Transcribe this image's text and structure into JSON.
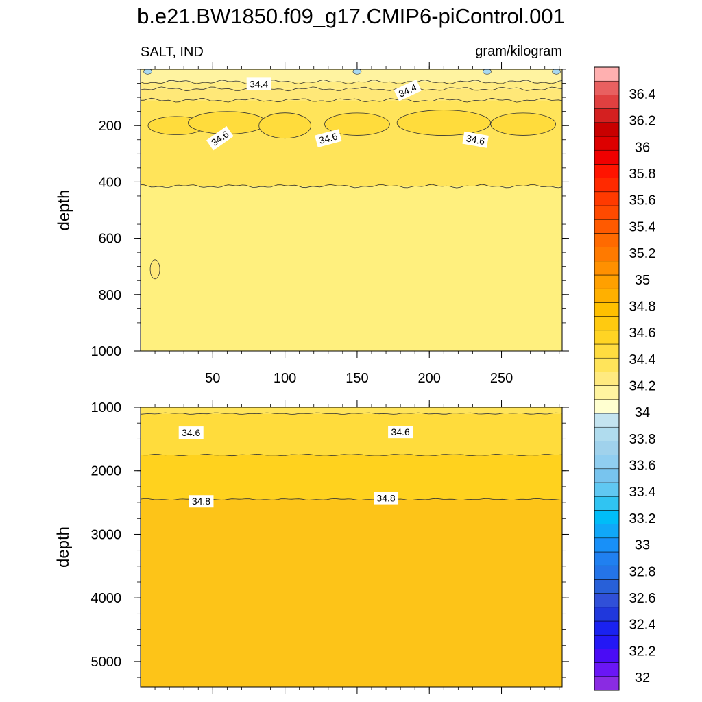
{
  "title": "b.e21.BW1850.f09_g17.CMIP6-piControl.001",
  "chart_data": [
    {
      "type": "heatmap",
      "panel": "upper",
      "left_label": "SALT, IND",
      "right_label": "gram/kilogram",
      "xlabel": "",
      "ylabel": "depth",
      "xlim": [
        0,
        292
      ],
      "ylim": [
        0,
        1000
      ],
      "y_reversed": true,
      "x_ticks": [
        50,
        100,
        150,
        200,
        250
      ],
      "x_tick_labels": [
        "50",
        "100",
        "150",
        "200",
        "250"
      ],
      "y_ticks": [
        200,
        400,
        600,
        800,
        1000
      ],
      "y_tick_labels": [
        "200",
        "400",
        "600",
        "800",
        "1000"
      ],
      "bands": [
        {
          "from": 0,
          "to": 45,
          "level": 34.3,
          "color": "#fff3a0"
        },
        {
          "from": 45,
          "to": 70,
          "level": 34.4,
          "color": "#ffec82"
        },
        {
          "from": 70,
          "to": 110,
          "level": 34.45,
          "color": "#ffe878"
        },
        {
          "from": 110,
          "to": 415,
          "level": 34.5,
          "color": "#ffe45a"
        },
        {
          "from": 415,
          "to": 1000,
          "level": 34.45,
          "color": "#fff07e"
        }
      ],
      "contour_levels": [
        34.4,
        34.6
      ],
      "contour_labels": [
        {
          "text": "34.4",
          "x": 82,
          "y": 52,
          "angle": 0
        },
        {
          "text": "34.4",
          "x": 185,
          "y": 75,
          "angle": -25
        },
        {
          "text": "34.6",
          "x": 55,
          "y": 245,
          "angle": -35
        },
        {
          "text": "34.6",
          "x": 130,
          "y": 245,
          "angle": -15
        },
        {
          "text": "34.6",
          "x": 232,
          "y": 250,
          "angle": 10
        }
      ]
    },
    {
      "type": "heatmap",
      "panel": "lower",
      "xlabel": "",
      "ylabel": "depth",
      "xlim": [
        0,
        292
      ],
      "ylim": [
        1000,
        5400
      ],
      "y_reversed": true,
      "y_ticks": [
        1000,
        2000,
        3000,
        4000,
        5000
      ],
      "y_tick_labels": [
        "1000",
        "2000",
        "3000",
        "4000",
        "5000"
      ],
      "bands": [
        {
          "from": 1000,
          "to": 1100,
          "level": 34.5,
          "color": "#ffe45a"
        },
        {
          "from": 1100,
          "to": 1750,
          "level": 34.65,
          "color": "#ffdc3c"
        },
        {
          "from": 1750,
          "to": 2450,
          "level": 34.75,
          "color": "#ffd21e"
        },
        {
          "from": 2450,
          "to": 5400,
          "level": 34.85,
          "color": "#fdc418"
        }
      ],
      "contour_levels": [
        34.6,
        34.8
      ],
      "contour_labels": [
        {
          "text": "34.6",
          "x": 35,
          "y": 1400,
          "angle": 0
        },
        {
          "text": "34.6",
          "x": 180,
          "y": 1390,
          "angle": 0
        },
        {
          "text": "34.8",
          "x": 42,
          "y": 2480,
          "angle": 0
        },
        {
          "text": "34.8",
          "x": 170,
          "y": 2430,
          "angle": 0
        }
      ]
    }
  ],
  "colorbar": {
    "labels": [
      "36.4",
      "36.2",
      "36",
      "35.8",
      "35.6",
      "35.4",
      "35.2",
      "35",
      "34.8",
      "34.6",
      "34.4",
      "34.2",
      "34",
      "33.8",
      "33.6",
      "33.4",
      "33.2",
      "33",
      "32.8",
      "32.6",
      "32.4",
      "32.2",
      "32"
    ],
    "colors": [
      "#8a2be2",
      "#6a16f5",
      "#4a0cf5",
      "#2418f5",
      "#1a22f0",
      "#2038dc",
      "#3050d8",
      "#2860d8",
      "#2474e8",
      "#2080f0",
      "#1890f8",
      "#10a8f8",
      "#00bdf8",
      "#30c4f2",
      "#60c8f2",
      "#78c4ee",
      "#90cef0",
      "#a0d2ec",
      "#b0dcee",
      "#c4e4f0",
      "#ffffd0",
      "#fff4a0",
      "#ffea80",
      "#ffe45a",
      "#ffdc40",
      "#ffd424",
      "#ffca10",
      "#ffc000",
      "#ffb000",
      "#ffa000",
      "#ff9000",
      "#ff7a00",
      "#ff6a00",
      "#ff5a00",
      "#ff4a00",
      "#ff3a00",
      "#ff2a00",
      "#ff1400",
      "#f00000",
      "#dd0000",
      "#c80000",
      "#d42020",
      "#e04040",
      "#e86060",
      "#ffb0b0"
    ]
  }
}
